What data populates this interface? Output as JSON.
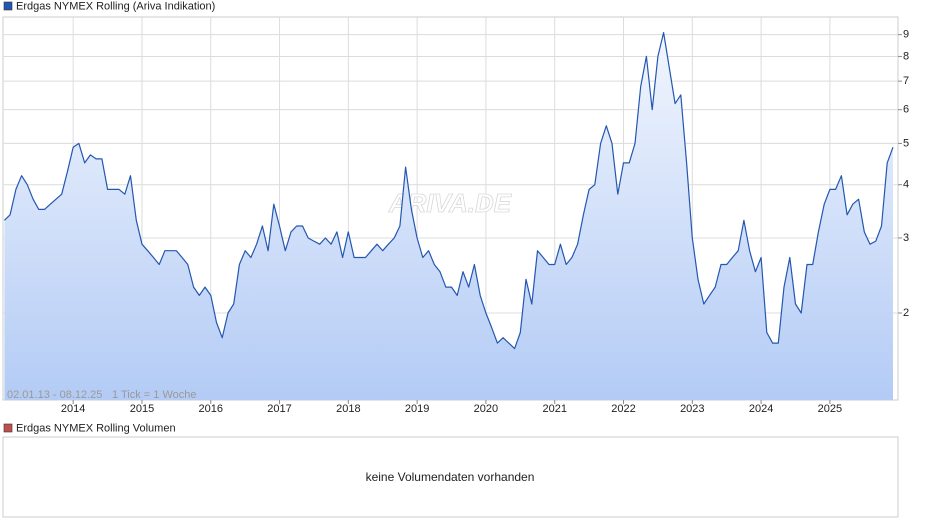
{
  "chart_data": {
    "type": "line",
    "title": "Erdgas NYMEX Rolling (Ariva Indikation)",
    "date_range": "02.01.13 - 08.12.25",
    "tick_note": "1 Tick = 1 Woche",
    "watermark": "ARIVA.DE",
    "log_scale": true,
    "grid": true,
    "xlim": [
      2012.98,
      2025.99
    ],
    "xticks": [
      2014,
      2015,
      2016,
      2017,
      2018,
      2019,
      2020,
      2021,
      2022,
      2023,
      2024,
      2025
    ],
    "ylim": [
      1.25,
      9.9
    ],
    "yticks": [
      2,
      3,
      4,
      5,
      6,
      7,
      8,
      9
    ],
    "x": [
      2013.0,
      2013.083,
      2013.167,
      2013.25,
      2013.333,
      2013.417,
      2013.5,
      2013.583,
      2013.667,
      2013.75,
      2013.833,
      2013.917,
      2014.0,
      2014.083,
      2014.167,
      2014.25,
      2014.333,
      2014.417,
      2014.5,
      2014.583,
      2014.667,
      2014.75,
      2014.833,
      2014.917,
      2015.0,
      2015.083,
      2015.167,
      2015.25,
      2015.333,
      2015.417,
      2015.5,
      2015.583,
      2015.667,
      2015.75,
      2015.833,
      2015.917,
      2016.0,
      2016.083,
      2016.167,
      2016.25,
      2016.333,
      2016.417,
      2016.5,
      2016.583,
      2016.667,
      2016.75,
      2016.833,
      2016.917,
      2017.0,
      2017.083,
      2017.167,
      2017.25,
      2017.333,
      2017.417,
      2017.5,
      2017.583,
      2017.667,
      2017.75,
      2017.833,
      2017.917,
      2018.0,
      2018.083,
      2018.167,
      2018.25,
      2018.333,
      2018.417,
      2018.5,
      2018.583,
      2018.667,
      2018.75,
      2018.833,
      2018.917,
      2019.0,
      2019.083,
      2019.167,
      2019.25,
      2019.333,
      2019.417,
      2019.5,
      2019.583,
      2019.667,
      2019.75,
      2019.833,
      2019.917,
      2020.0,
      2020.083,
      2020.167,
      2020.25,
      2020.333,
      2020.417,
      2020.5,
      2020.583,
      2020.667,
      2020.75,
      2020.833,
      2020.917,
      2021.0,
      2021.083,
      2021.167,
      2021.25,
      2021.333,
      2021.417,
      2021.5,
      2021.583,
      2021.667,
      2021.75,
      2021.833,
      2021.917,
      2022.0,
      2022.083,
      2022.167,
      2022.25,
      2022.333,
      2022.417,
      2022.5,
      2022.583,
      2022.667,
      2022.75,
      2022.833,
      2022.917,
      2023.0,
      2023.083,
      2023.167,
      2023.25,
      2023.333,
      2023.417,
      2023.5,
      2023.583,
      2023.667,
      2023.75,
      2023.833,
      2023.917,
      2024.0,
      2024.083,
      2024.167,
      2024.25,
      2024.333,
      2024.417,
      2024.5,
      2024.583,
      2024.667,
      2024.75,
      2024.833,
      2024.917,
      2025.0,
      2025.083,
      2025.167,
      2025.25,
      2025.333,
      2025.417,
      2025.5,
      2025.583,
      2025.667,
      2025.75,
      2025.833,
      2025.917
    ],
    "series": [
      {
        "name": "Erdgas NYMEX Rolling (Ariva Indikation)",
        "color": "#2457b0",
        "values": [
          3.3,
          3.4,
          3.9,
          4.2,
          4.0,
          3.7,
          3.5,
          3.5,
          3.6,
          3.7,
          3.8,
          4.3,
          4.9,
          5.0,
          4.5,
          4.7,
          4.6,
          4.6,
          3.9,
          3.9,
          3.9,
          3.8,
          4.2,
          3.3,
          2.9,
          2.8,
          2.7,
          2.6,
          2.8,
          2.8,
          2.8,
          2.7,
          2.6,
          2.3,
          2.2,
          2.3,
          2.2,
          1.9,
          1.75,
          2.0,
          2.1,
          2.6,
          2.8,
          2.7,
          2.9,
          3.2,
          2.8,
          3.6,
          3.2,
          2.8,
          3.1,
          3.2,
          3.2,
          3.0,
          2.95,
          2.9,
          3.0,
          2.9,
          3.1,
          2.7,
          3.1,
          2.7,
          2.7,
          2.7,
          2.8,
          2.9,
          2.8,
          2.9,
          3.0,
          3.2,
          4.4,
          3.5,
          3.0,
          2.7,
          2.8,
          2.6,
          2.5,
          2.3,
          2.3,
          2.2,
          2.5,
          2.3,
          2.6,
          2.2,
          2.0,
          1.85,
          1.7,
          1.75,
          1.7,
          1.65,
          1.8,
          2.4,
          2.1,
          2.8,
          2.7,
          2.6,
          2.6,
          2.9,
          2.6,
          2.7,
          2.9,
          3.4,
          3.9,
          4.0,
          5.0,
          5.5,
          5.0,
          3.8,
          4.5,
          4.5,
          5.0,
          6.8,
          8.0,
          6.0,
          8.0,
          9.1,
          7.5,
          6.2,
          6.5,
          4.5,
          3.0,
          2.4,
          2.1,
          2.2,
          2.3,
          2.6,
          2.6,
          2.7,
          2.8,
          3.3,
          2.8,
          2.5,
          2.7,
          1.8,
          1.7,
          1.7,
          2.3,
          2.7,
          2.1,
          2.0,
          2.6,
          2.6,
          3.1,
          3.6,
          3.9,
          3.9,
          4.2,
          3.4,
          3.6,
          3.7,
          3.1,
          2.9,
          2.95,
          3.2,
          4.5,
          4.9
        ]
      }
    ]
  },
  "volume_panel": {
    "title": "Erdgas NYMEX Rolling Volumen",
    "color": "#c0504d",
    "message": "keine Volumendaten vorhanden"
  }
}
